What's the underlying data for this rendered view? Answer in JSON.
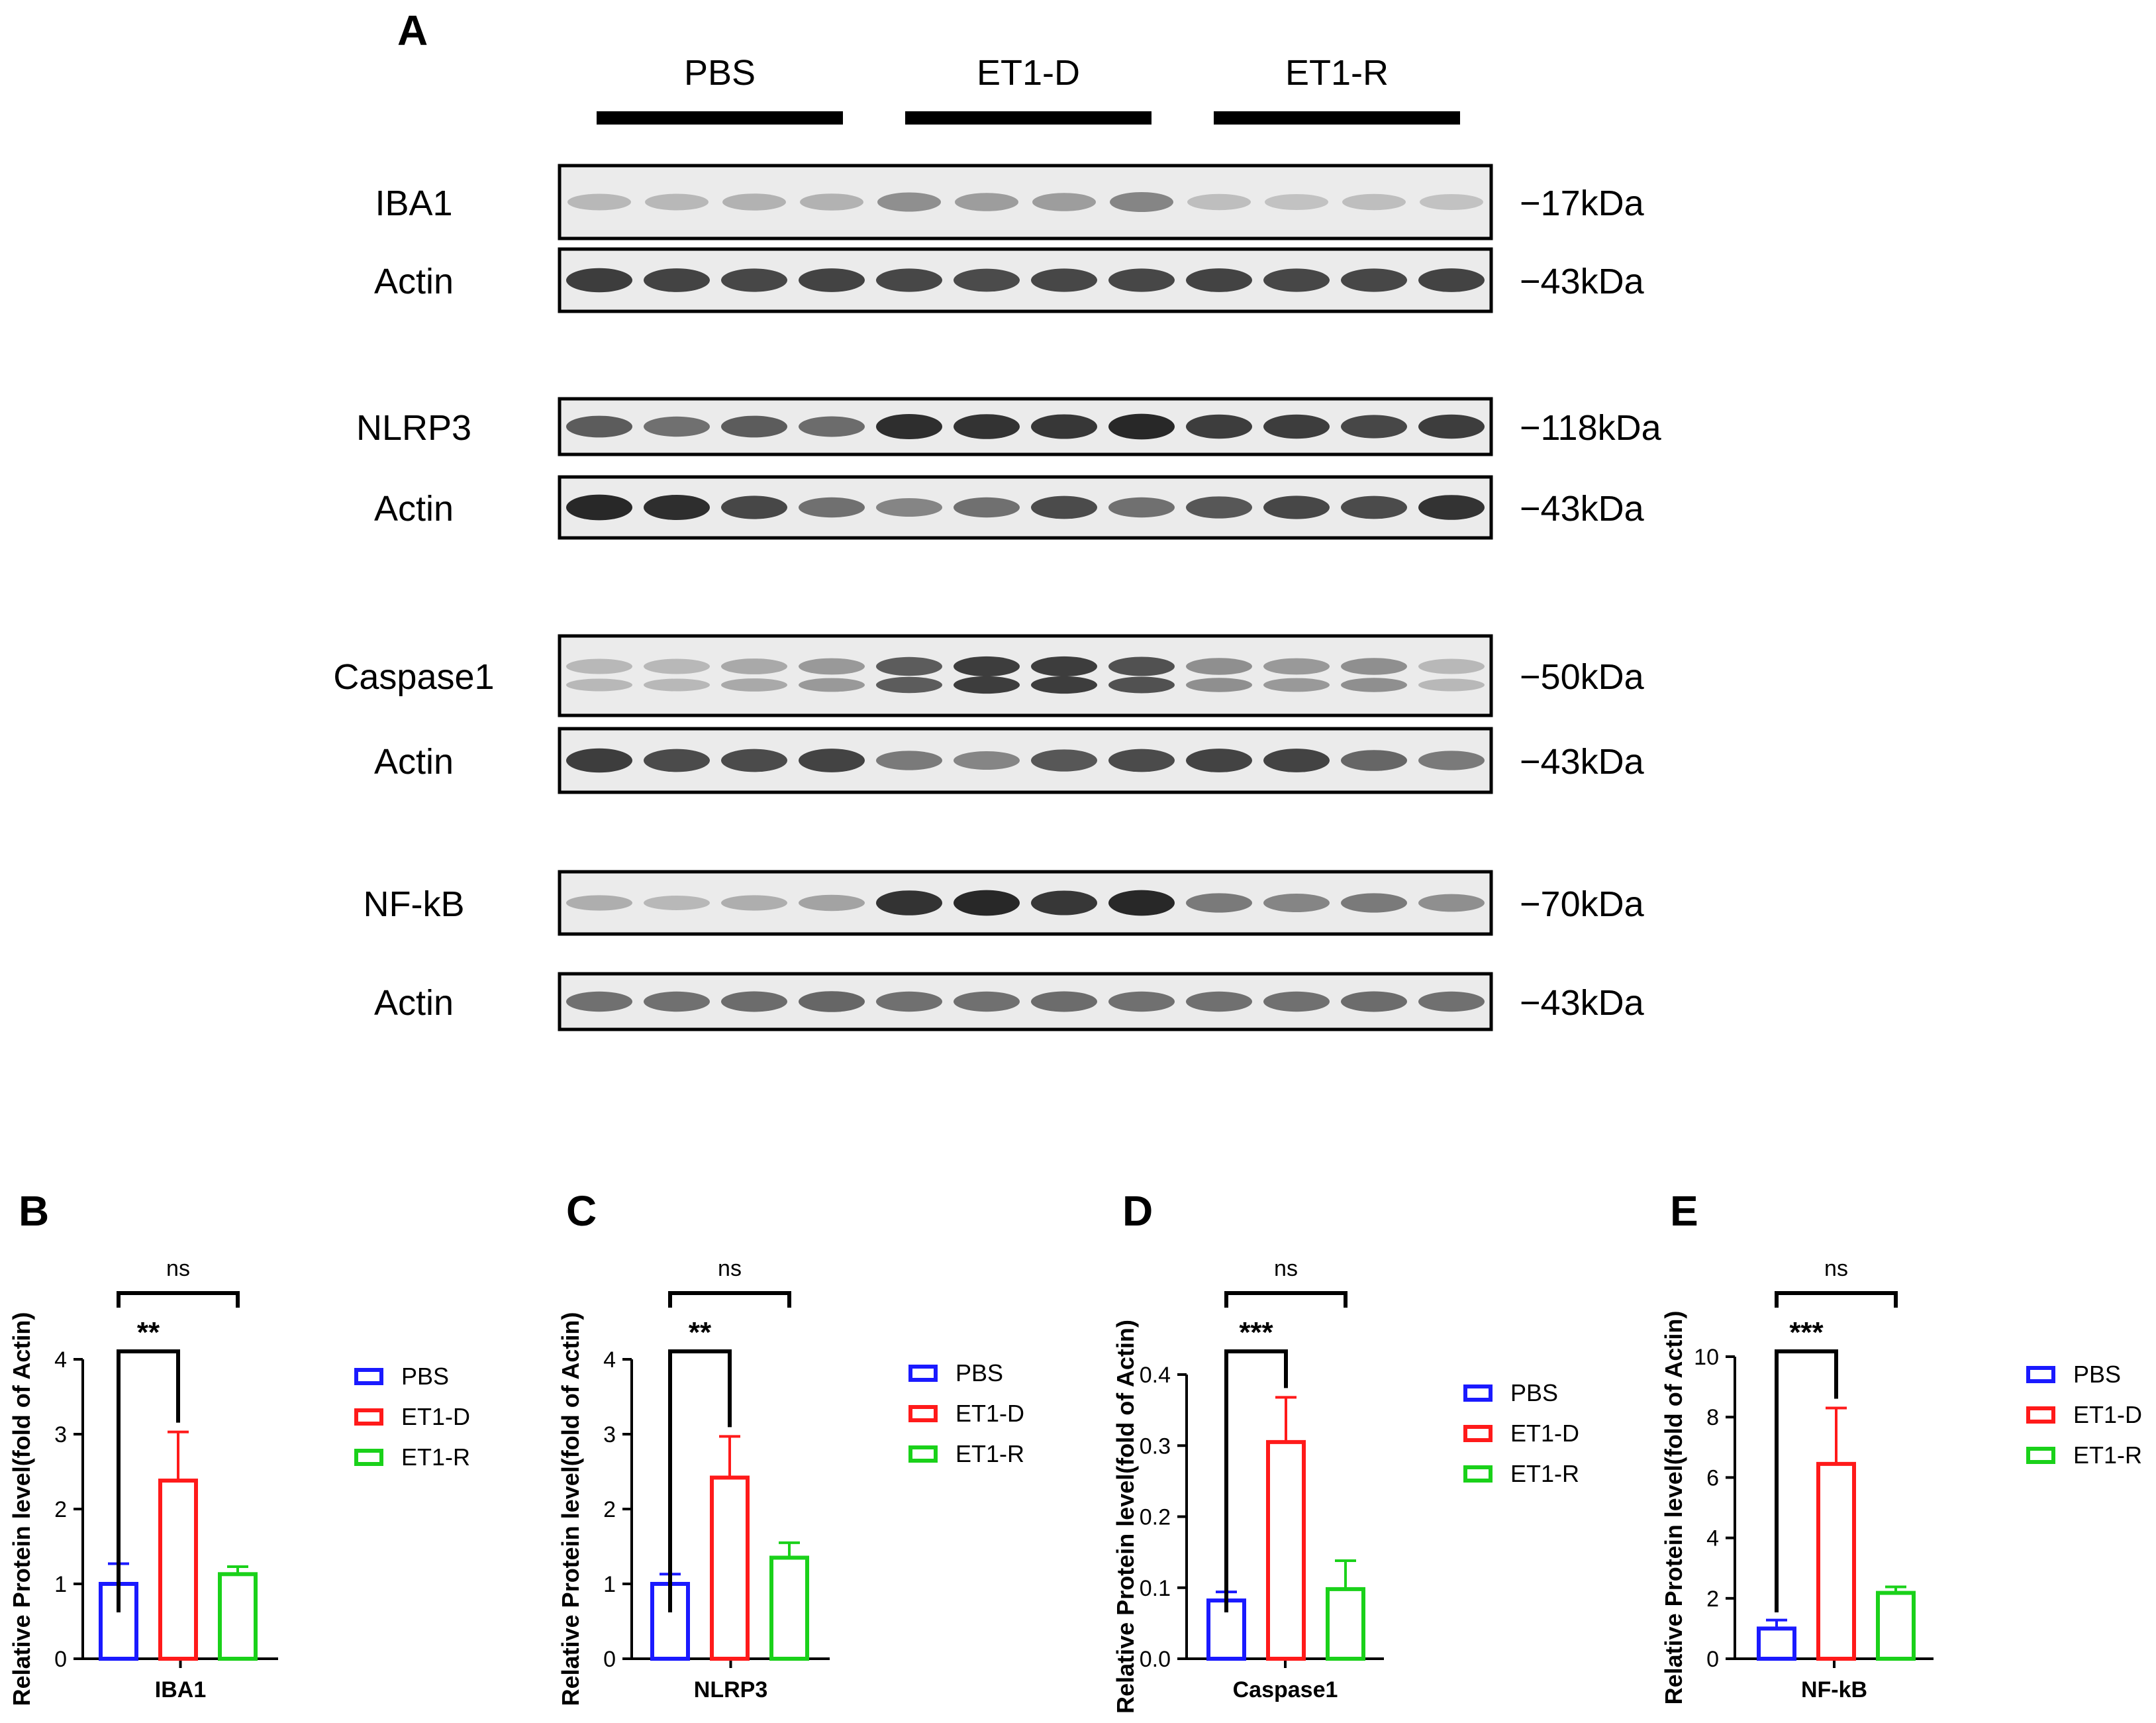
{
  "panel_a": {
    "letter": "A",
    "groups": [
      "PBS",
      "ET1-D",
      "ET1-R"
    ],
    "blots": [
      {
        "label": "IBA1",
        "kda": "−17kDa",
        "intensity": [
          0.25,
          0.25,
          0.28,
          0.28,
          0.45,
          0.38,
          0.38,
          0.5,
          0.22,
          0.2,
          0.22,
          0.2
        ],
        "smear": true
      },
      {
        "label": "Actin",
        "kda": "−43kDa",
        "intensity": [
          0.85,
          0.82,
          0.8,
          0.82,
          0.8,
          0.78,
          0.8,
          0.8,
          0.82,
          0.8,
          0.8,
          0.82
        ]
      },
      {
        "label": "NLRP3",
        "kda": "−118kDa",
        "intensity": [
          0.7,
          0.6,
          0.7,
          0.62,
          0.92,
          0.9,
          0.88,
          0.95,
          0.85,
          0.85,
          0.8,
          0.85
        ]
      },
      {
        "label": "Actin",
        "kda": "−43kDa",
        "intensity": [
          0.95,
          0.92,
          0.8,
          0.6,
          0.5,
          0.6,
          0.78,
          0.6,
          0.72,
          0.8,
          0.78,
          0.9
        ]
      },
      {
        "label": "Caspase1",
        "kda": "−50kDa",
        "intensity": [
          0.25,
          0.25,
          0.32,
          0.4,
          0.7,
          0.85,
          0.85,
          0.75,
          0.45,
          0.4,
          0.45,
          0.25
        ],
        "double": true
      },
      {
        "label": "Actin",
        "kda": "−43kDa",
        "intensity": [
          0.85,
          0.78,
          0.78,
          0.82,
          0.55,
          0.5,
          0.72,
          0.78,
          0.82,
          0.82,
          0.65,
          0.55
        ]
      },
      {
        "label": "NF-kB",
        "kda": "−70kDa",
        "intensity": [
          0.3,
          0.25,
          0.3,
          0.35,
          0.9,
          0.95,
          0.88,
          0.95,
          0.55,
          0.5,
          0.55,
          0.45
        ]
      },
      {
        "label": "Actin",
        "kda": "−43kDa",
        "intensity": [
          0.6,
          0.6,
          0.62,
          0.65,
          0.6,
          0.6,
          0.62,
          0.6,
          0.6,
          0.6,
          0.62,
          0.6
        ]
      }
    ]
  },
  "legend": [
    "PBS",
    "ET1-D",
    "ET1-R"
  ],
  "colors": {
    "PBS": "#1a1aff",
    "ET1-D": "#ff1a1a",
    "ET1-R": "#1ad11a",
    "ink": "#000000"
  },
  "chart_data": [
    {
      "panel": "B",
      "type": "bar",
      "xlabel": "IBA1",
      "ylabel": "Relative Protein level(fold of Actin)",
      "ylim": [
        0,
        4
      ],
      "yticks": [
        "0",
        "1",
        "2",
        "3",
        "4"
      ],
      "categories": [
        "PBS",
        "ET1-D",
        "ET1-R"
      ],
      "values": [
        1.0,
        2.38,
        1.13
      ],
      "errors": [
        0.27,
        0.65,
        0.1
      ],
      "sig": [
        {
          "label": "**",
          "pair": [
            0,
            1
          ]
        },
        {
          "label": "ns",
          "pair": [
            0,
            2
          ]
        }
      ]
    },
    {
      "panel": "C",
      "type": "bar",
      "xlabel": "NLRP3",
      "ylabel": "Relative Protein level(fold of Actin)",
      "ylim": [
        0,
        4
      ],
      "yticks": [
        "0",
        "1",
        "2",
        "3",
        "4"
      ],
      "categories": [
        "PBS",
        "ET1-D",
        "ET1-R"
      ],
      "values": [
        1.0,
        2.42,
        1.35
      ],
      "errors": [
        0.13,
        0.55,
        0.2
      ],
      "sig": [
        {
          "label": "**",
          "pair": [
            0,
            1
          ]
        },
        {
          "label": "ns",
          "pair": [
            0,
            2
          ]
        }
      ]
    },
    {
      "panel": "D",
      "type": "bar",
      "xlabel": "Caspase1",
      "ylabel": "Relative Protein level(fold of Actin)",
      "ylim": [
        0,
        0.4
      ],
      "yticks": [
        "0.0",
        "0.1",
        "0.2",
        "0.3",
        "0.4"
      ],
      "categories": [
        "PBS",
        "ET1-D",
        "ET1-R"
      ],
      "values": [
        0.082,
        0.305,
        0.098
      ],
      "errors": [
        0.012,
        0.063,
        0.04
      ],
      "sig": [
        {
          "label": "***",
          "pair": [
            0,
            1
          ]
        },
        {
          "label": "ns",
          "pair": [
            0,
            2
          ]
        }
      ]
    },
    {
      "panel": "E",
      "type": "bar",
      "xlabel": "NF-kB",
      "ylabel": "Relative Protein level(fold of Actin)",
      "ylim": [
        0,
        10
      ],
      "yticks": [
        "0",
        "2",
        "4",
        "6",
        "8",
        "10"
      ],
      "categories": [
        "PBS",
        "ET1-D",
        "ET1-R"
      ],
      "values": [
        1.0,
        6.45,
        2.18
      ],
      "errors": [
        0.28,
        1.85,
        0.2
      ],
      "sig": [
        {
          "label": "***",
          "pair": [
            0,
            1
          ]
        },
        {
          "label": "ns",
          "pair": [
            0,
            2
          ]
        }
      ]
    }
  ]
}
